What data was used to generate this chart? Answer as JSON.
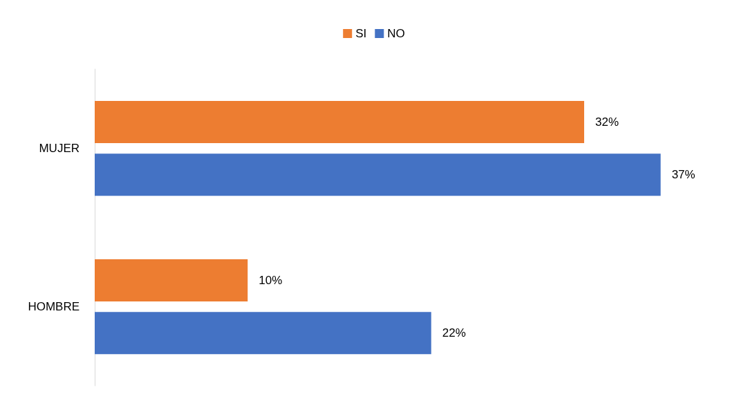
{
  "chart_data": {
    "type": "bar",
    "orientation": "horizontal",
    "categories": [
      "MUJER",
      "HOMBRE"
    ],
    "series": [
      {
        "name": "SI",
        "color": "#ed7d31",
        "values": [
          32,
          10
        ],
        "value_labels": [
          "32%",
          "10%"
        ]
      },
      {
        "name": "NO",
        "color": "#4472c4",
        "values": [
          37,
          22
        ],
        "value_labels": [
          "37%",
          "22%"
        ]
      }
    ],
    "legend": "top"
  }
}
